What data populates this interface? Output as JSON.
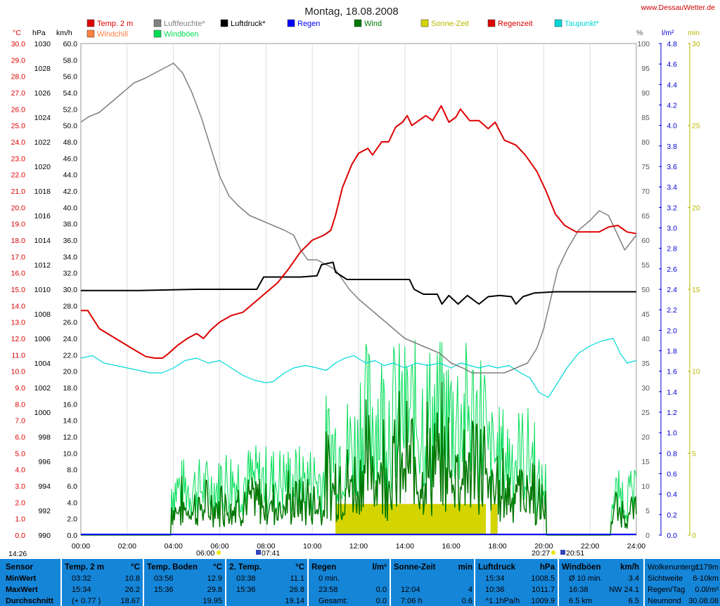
{
  "chart_data": {
    "type": "line",
    "title": "Montag, 18.08.2008",
    "source": "www.DessauWetter.de",
    "legend": [
      {
        "label": "Temp. 2 m",
        "color": "#dd0000"
      },
      {
        "label": "Luftfeuchte*",
        "color": "#808080"
      },
      {
        "label": "Luftdruck*",
        "color": "#000000"
      },
      {
        "label": "Regen",
        "color": "#0000ff"
      },
      {
        "label": "Wind",
        "color": "#007700"
      },
      {
        "label": "Sonne-Zeit",
        "color": "#d4d400"
      },
      {
        "label": "Regenzeit",
        "color": "#dd0000"
      },
      {
        "label": "Taupunkt*",
        "color": "#00d8d8"
      },
      {
        "label": "Windchill",
        "color": "#ff8040"
      },
      {
        "label": "Windböen",
        "color": "#00dd55"
      }
    ],
    "axes": {
      "temp": {
        "unit": "°C",
        "min": 0,
        "max": 30,
        "step": 1,
        "color": "#dd0000"
      },
      "pressure": {
        "unit": "hPa",
        "min": 990,
        "max": 1030,
        "step": 2,
        "color": "#000000"
      },
      "wind": {
        "unit": "km/h",
        "min": 0,
        "max": 60,
        "step": 2,
        "color": "#000000"
      },
      "humidity": {
        "unit": "%",
        "min": 0,
        "max": 100,
        "step": 5,
        "color": "#555555"
      },
      "rain": {
        "unit": "l/m²",
        "min": 0,
        "max": 4.8,
        "step": 0.2,
        "color": "#0000cc"
      },
      "sun": {
        "unit": "min",
        "min": 0,
        "max": 30,
        "step": 5,
        "color": "#b8b800"
      }
    },
    "x_ticks": [
      "00:00",
      "02:00",
      "04:00",
      "06:00",
      "08:00",
      "10:00",
      "12:00",
      "14:00",
      "16:00",
      "18:00",
      "20:00",
      "22:00",
      "24:00"
    ],
    "x_range_hours": [
      0,
      24
    ],
    "sun_events": {
      "moonset": "14:26",
      "sunrise": "06:00",
      "moonrise_icon": "07:41",
      "sunset": "20:27",
      "moon": "20:51"
    },
    "series": {
      "temperature": {
        "name": "Temp. 2 m",
        "color": "#dd0000",
        "points": [
          [
            0,
            13.7
          ],
          [
            0.3,
            13.7
          ],
          [
            0.8,
            12.6
          ],
          [
            1.5,
            12.0
          ],
          [
            2.2,
            11.4
          ],
          [
            2.8,
            10.9
          ],
          [
            3.2,
            10.8
          ],
          [
            3.53,
            10.8
          ],
          [
            3.8,
            11.1
          ],
          [
            4.2,
            11.6
          ],
          [
            4.6,
            12.0
          ],
          [
            5.0,
            12.3
          ],
          [
            5.3,
            12.0
          ],
          [
            5.6,
            12.5
          ],
          [
            6.0,
            13.0
          ],
          [
            6.5,
            13.4
          ],
          [
            7.0,
            13.6
          ],
          [
            7.5,
            14.2
          ],
          [
            8.0,
            14.8
          ],
          [
            8.5,
            15.4
          ],
          [
            9.0,
            16.3
          ],
          [
            9.5,
            17.3
          ],
          [
            10.0,
            18.0
          ],
          [
            10.5,
            18.3
          ],
          [
            10.8,
            18.6
          ],
          [
            11.0,
            19.5
          ],
          [
            11.3,
            21.2
          ],
          [
            11.7,
            22.6
          ],
          [
            12.0,
            23.3
          ],
          [
            12.4,
            23.6
          ],
          [
            12.6,
            23.2
          ],
          [
            13.0,
            24.0
          ],
          [
            13.3,
            24.0
          ],
          [
            13.6,
            24.9
          ],
          [
            13.9,
            25.2
          ],
          [
            14.1,
            25.6
          ],
          [
            14.3,
            25.0
          ],
          [
            14.6,
            25.3
          ],
          [
            14.9,
            25.6
          ],
          [
            15.2,
            25.3
          ],
          [
            15.57,
            26.2
          ],
          [
            15.9,
            25.2
          ],
          [
            16.2,
            25.5
          ],
          [
            16.4,
            26.0
          ],
          [
            16.8,
            25.3
          ],
          [
            17.2,
            25.3
          ],
          [
            17.6,
            24.8
          ],
          [
            17.9,
            25.2
          ],
          [
            18.3,
            24.1
          ],
          [
            18.8,
            23.8
          ],
          [
            19.2,
            23.2
          ],
          [
            19.7,
            22.2
          ],
          [
            20.1,
            21.0
          ],
          [
            20.5,
            19.6
          ],
          [
            20.9,
            18.9
          ],
          [
            21.4,
            18.5
          ],
          [
            21.9,
            18.5
          ],
          [
            22.4,
            18.5
          ],
          [
            22.8,
            18.8
          ],
          [
            23.2,
            18.9
          ],
          [
            23.6,
            18.5
          ],
          [
            24,
            18.4
          ]
        ]
      },
      "humidity": {
        "name": "Luftfeuchte*",
        "color": "#808080",
        "points": [
          [
            0,
            84
          ],
          [
            0.3,
            85
          ],
          [
            0.8,
            86
          ],
          [
            1.3,
            88
          ],
          [
            1.8,
            90
          ],
          [
            2.3,
            92
          ],
          [
            2.8,
            93
          ],
          [
            3.2,
            94
          ],
          [
            3.6,
            95
          ],
          [
            4.0,
            96
          ],
          [
            4.4,
            94
          ],
          [
            4.8,
            90
          ],
          [
            5.2,
            85
          ],
          [
            5.6,
            79
          ],
          [
            6.0,
            73
          ],
          [
            6.4,
            69
          ],
          [
            6.8,
            67
          ],
          [
            7.3,
            65
          ],
          [
            7.8,
            64
          ],
          [
            8.3,
            63
          ],
          [
            8.8,
            62
          ],
          [
            9.2,
            61
          ],
          [
            9.5,
            58
          ],
          [
            9.8,
            56
          ],
          [
            10.2,
            56
          ],
          [
            10.6,
            55
          ],
          [
            11.0,
            54
          ],
          [
            11.3,
            52
          ],
          [
            11.6,
            50
          ],
          [
            12.0,
            48
          ],
          [
            12.5,
            46
          ],
          [
            13.0,
            44
          ],
          [
            13.5,
            42
          ],
          [
            14.0,
            40
          ],
          [
            14.5,
            39
          ],
          [
            15.0,
            38
          ],
          [
            15.5,
            37
          ],
          [
            16.0,
            35
          ],
          [
            16.5,
            34
          ],
          [
            16.9,
            33
          ],
          [
            17.3,
            33
          ],
          [
            17.8,
            33
          ],
          [
            18.3,
            33
          ],
          [
            18.8,
            34
          ],
          [
            19.3,
            35
          ],
          [
            19.7,
            38
          ],
          [
            20.0,
            42
          ],
          [
            20.3,
            48
          ],
          [
            20.6,
            54
          ],
          [
            21.0,
            58
          ],
          [
            21.5,
            62
          ],
          [
            22.0,
            64
          ],
          [
            22.4,
            66
          ],
          [
            22.8,
            65
          ],
          [
            23.1,
            62
          ],
          [
            23.5,
            58
          ],
          [
            24,
            61
          ]
        ]
      },
      "pressure": {
        "name": "Luftdruck*",
        "color": "#000000",
        "points": [
          [
            0,
            1009.9
          ],
          [
            2.5,
            1009.9
          ],
          [
            5.0,
            1010.0
          ],
          [
            7.6,
            1010.0
          ],
          [
            7.9,
            1011.0
          ],
          [
            9.5,
            1011.0
          ],
          [
            10.2,
            1011.1
          ],
          [
            10.4,
            1012.0
          ],
          [
            10.9,
            1012.2
          ],
          [
            11.0,
            1011.4
          ],
          [
            11.5,
            1010.8
          ],
          [
            12.2,
            1010.8
          ],
          [
            14.2,
            1010.8
          ],
          [
            14.4,
            1010.0
          ],
          [
            14.8,
            1009.6
          ],
          [
            15.4,
            1009.6
          ],
          [
            15.6,
            1008.8
          ],
          [
            15.9,
            1009.5
          ],
          [
            16.3,
            1008.8
          ],
          [
            16.7,
            1009.5
          ],
          [
            17.2,
            1008.8
          ],
          [
            17.6,
            1009.4
          ],
          [
            18.1,
            1009.5
          ],
          [
            18.6,
            1009.4
          ],
          [
            18.8,
            1008.8
          ],
          [
            19.1,
            1009.4
          ],
          [
            19.6,
            1009.7
          ],
          [
            20.5,
            1009.8
          ],
          [
            24,
            1009.8
          ]
        ]
      },
      "dewpoint": {
        "name": "Taupunkt*",
        "color": "#00d8d8",
        "points": [
          [
            0,
            36
          ],
          [
            0.5,
            36.5
          ],
          [
            1.0,
            35
          ],
          [
            1.5,
            34.5
          ],
          [
            2.0,
            34
          ],
          [
            2.5,
            33.5
          ],
          [
            3.0,
            33
          ],
          [
            3.5,
            33
          ],
          [
            4.0,
            34
          ],
          [
            4.5,
            35.5
          ],
          [
            5.0,
            36
          ],
          [
            5.5,
            35
          ],
          [
            6.0,
            35.5
          ],
          [
            6.5,
            34
          ],
          [
            7.0,
            32.5
          ],
          [
            7.5,
            31.5
          ],
          [
            8.0,
            31
          ],
          [
            8.3,
            31.2
          ],
          [
            8.8,
            33
          ],
          [
            9.2,
            34
          ],
          [
            9.7,
            34.5
          ],
          [
            10.2,
            34
          ],
          [
            10.6,
            33.5
          ],
          [
            11.0,
            35
          ],
          [
            11.4,
            36
          ],
          [
            11.8,
            36.5
          ],
          [
            12.3,
            35
          ],
          [
            12.7,
            35.5
          ],
          [
            13.1,
            34.5
          ],
          [
            13.5,
            35
          ],
          [
            14.0,
            34
          ],
          [
            14.5,
            35
          ],
          [
            15.0,
            34.5
          ],
          [
            15.5,
            35
          ],
          [
            16.0,
            34
          ],
          [
            16.4,
            35
          ],
          [
            16.8,
            34.5
          ],
          [
            17.2,
            34
          ],
          [
            17.6,
            34.5
          ],
          [
            18.0,
            34
          ],
          [
            18.5,
            34.5
          ],
          [
            19.0,
            33
          ],
          [
            19.4,
            32
          ],
          [
            19.8,
            29
          ],
          [
            20.2,
            28
          ],
          [
            20.6,
            31
          ],
          [
            21.0,
            34
          ],
          [
            21.5,
            37
          ],
          [
            22.0,
            38.5
          ],
          [
            22.5,
            39.5
          ],
          [
            23.0,
            40
          ],
          [
            23.3,
            37
          ],
          [
            23.6,
            35
          ],
          [
            24,
            35.5
          ]
        ]
      },
      "rain": {
        "name": "Regen",
        "color": "#0000ff",
        "total": 0.0
      },
      "sunshine_blocks_hours": [
        [
          11.0,
          17.5
        ],
        [
          17.7,
          18.0
        ]
      ],
      "sunshine_level_min": 1.9
    }
  },
  "panel": {
    "row_labels": [
      "Sensor",
      "MinWert",
      "MaxWert",
      "Durchschnitt"
    ],
    "groups": [
      {
        "title": "Temp. 2 m",
        "unit": "°C",
        "rows": [
          [
            "03:32",
            "10.8"
          ],
          [
            "15:34",
            "26.2"
          ],
          [
            "(+ 0.77 )",
            "18.67"
          ]
        ]
      },
      {
        "title": "Temp. Boden",
        "unit": "°C",
        "rows": [
          [
            "03:56",
            "12.9"
          ],
          [
            "15:36",
            "29.8"
          ],
          [
            "",
            "19.95"
          ]
        ]
      },
      {
        "title": "2. Temp.",
        "unit": "°C",
        "rows": [
          [
            "03:38",
            "11.1"
          ],
          [
            "15:36",
            "26.8"
          ],
          [
            "",
            "19.14"
          ]
        ]
      },
      {
        "title": "Regen",
        "unit": "l/m²",
        "rows": [
          [
            "0 min.",
            ""
          ],
          [
            "23:58",
            "0.0"
          ],
          [
            "Gesamt:",
            "0.0"
          ]
        ]
      },
      {
        "title": "Sonne-Zeit",
        "unit": "min",
        "rows": [
          [
            "",
            ""
          ],
          [
            "12:04",
            "4"
          ],
          [
            "7:06 h",
            "0.6"
          ]
        ]
      },
      {
        "title": "Luftdruck",
        "unit": "hPa",
        "rows": [
          [
            "15:34",
            "1008.5"
          ],
          [
            "10:36",
            "1011.7"
          ],
          [
            "^1.1hPa/h",
            "1009.9"
          ]
        ]
      },
      {
        "title": "Windböen",
        "unit": "km/h",
        "rows": [
          [
            "Ø 10 min.",
            "3.4"
          ],
          [
            "16:38",
            "NW 24.1"
          ],
          [
            "6.5 km",
            "6.5"
          ]
        ]
      }
    ],
    "extra": [
      [
        "Wolkenuntergr",
        "1179m"
      ],
      [
        "Sichtweite",
        "6-10km"
      ],
      [
        "Regen/Tag",
        "0.0l/m²"
      ],
      [
        "Neumond",
        "30.08.08"
      ]
    ]
  }
}
